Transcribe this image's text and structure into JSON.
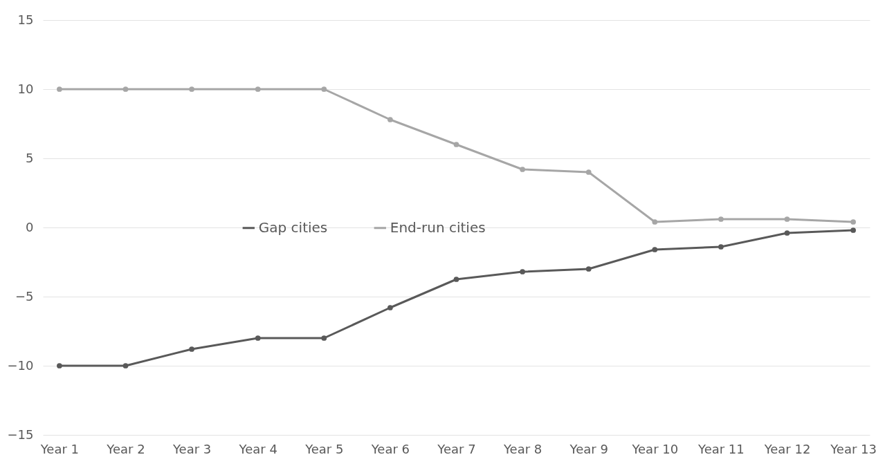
{
  "chart_data": {
    "type": "line",
    "categories": [
      "Year 1",
      "Year 2",
      "Year 3",
      "Year 4",
      "Year 5",
      "Year 6",
      "Year 7",
      "Year 8",
      "Year 9",
      "Year 10",
      "Year 11",
      "Year 12",
      "Year 13"
    ],
    "series": [
      {
        "name": "Gap cities",
        "color": "#595959",
        "values": [
          -10,
          -10,
          -8.8,
          -8,
          -8,
          -5.8,
          -3.75,
          -3.2,
          -3,
          -1.6,
          -1.4,
          -0.4,
          -0.2
        ]
      },
      {
        "name": "End-run cities",
        "color": "#a6a6a6",
        "values": [
          10,
          10,
          10,
          10,
          10,
          7.8,
          6,
          4.2,
          4,
          0.4,
          0.6,
          0.6,
          0.4
        ]
      }
    ],
    "ylim": [
      -15,
      15
    ],
    "yticks": [
      -15,
      -10,
      -5,
      0,
      5,
      10,
      15
    ],
    "grid": "y",
    "legend": "center",
    "marker": "circle",
    "line_style": "solid"
  }
}
